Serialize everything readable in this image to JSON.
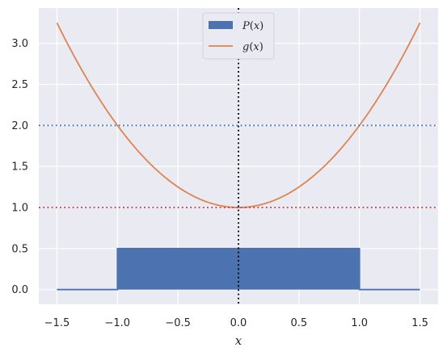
{
  "chart_data": {
    "type": "line",
    "xlabel": "x",
    "ylabel": "",
    "xlim": [
      -1.65,
      1.65
    ],
    "ylim": [
      -0.18,
      3.43
    ],
    "x_ticks": [
      -1.5,
      -1.0,
      -0.5,
      0.0,
      0.5,
      1.0,
      1.5
    ],
    "x_tick_labels": [
      "−1.5",
      "−1.0",
      "−0.5",
      "0.0",
      "0.5",
      "1.0",
      "1.5"
    ],
    "y_ticks": [
      0.0,
      0.5,
      1.0,
      1.5,
      2.0,
      2.5,
      3.0
    ],
    "y_tick_labels": [
      "0.0",
      "0.5",
      "1.0",
      "1.5",
      "2.0",
      "2.5",
      "3.0"
    ],
    "grid": true,
    "legend_position": "top-center",
    "series": [
      {
        "name": "P(x)",
        "kind": "filled-step",
        "color": "#4c72b0",
        "x": [
          -1.5,
          -1.0,
          -1.0,
          1.0,
          1.0,
          1.5
        ],
        "y": [
          0.0,
          0.0,
          0.5,
          0.5,
          0.0,
          0.0
        ]
      },
      {
        "name": "g(x)",
        "kind": "line",
        "color": "#dd8452",
        "formula": "1 + x^2",
        "x": [
          -1.5,
          -1.25,
          -1.0,
          -0.75,
          -0.5,
          -0.25,
          0.0,
          0.25,
          0.5,
          0.75,
          1.0,
          1.25,
          1.5
        ],
        "y": [
          3.25,
          2.5625,
          2.0,
          1.5625,
          1.25,
          1.0625,
          1.0,
          1.0625,
          1.25,
          1.5625,
          2.0,
          2.5625,
          3.25
        ]
      }
    ],
    "reference_lines": [
      {
        "orientation": "horizontal",
        "value": 2.0,
        "color": "#4c72b0",
        "style": "dotted"
      },
      {
        "orientation": "horizontal",
        "value": 1.0,
        "color": "#c44e52",
        "style": "dotted"
      },
      {
        "orientation": "vertical",
        "value": 0.0,
        "color": "#000000",
        "style": "dotted"
      }
    ],
    "legend": [
      {
        "label_main": "P",
        "label_paren": "(x)",
        "swatch": "patch",
        "color": "#4c72b0"
      },
      {
        "label_main": "g",
        "label_paren": "(x)",
        "swatch": "line",
        "color": "#dd8452"
      }
    ],
    "style": {
      "background": "#eaeaf2",
      "grid_color": "#ffffff"
    }
  }
}
